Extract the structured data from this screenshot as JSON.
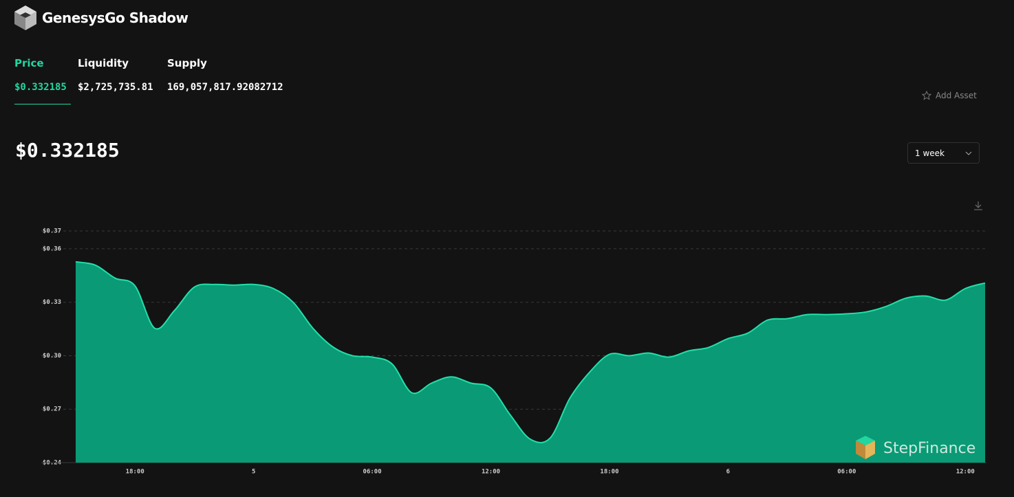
{
  "header": {
    "title": "GenesysGo Shadow"
  },
  "tabs": [
    {
      "label": "Price",
      "value": "$0.332185"
    },
    {
      "label": "Liquidity",
      "value": "$2,725,735.81"
    },
    {
      "label": "Supply",
      "value": "169,057,817.92082712"
    }
  ],
  "add_asset": "Add Asset",
  "current_price": "$0.332185",
  "range_select": "1 week",
  "watermark": "StepFinance",
  "chart_data": {
    "type": "area",
    "categories": [
      null,
      null,
      null,
      "18:00",
      null,
      null,
      null,
      null,
      null,
      "5",
      null,
      null,
      null,
      null,
      null,
      "06:00",
      null,
      null,
      null,
      null,
      null,
      "12:00",
      null,
      null,
      null,
      null,
      null,
      "18:00",
      null,
      null,
      null,
      null,
      null,
      "6",
      null,
      null,
      null,
      null,
      null,
      "06:00",
      null,
      null,
      null,
      null,
      null,
      "12:00",
      null
    ],
    "series": [
      {
        "color": "#0a9a76",
        "values": [
          0.3527,
          0.3508,
          0.3435,
          0.3392,
          0.3154,
          0.3254,
          0.3385,
          0.34,
          0.3396,
          0.34,
          0.3377,
          0.33,
          0.3154,
          0.305,
          0.3,
          0.2992,
          0.2954,
          0.2792,
          0.2846,
          0.2881,
          0.2846,
          0.2819,
          0.2665,
          0.2531,
          0.2538,
          0.2762,
          0.2908,
          0.3008,
          0.3,
          0.3015,
          0.2992,
          0.3027,
          0.3046,
          0.3096,
          0.3127,
          0.32,
          0.3208,
          0.3231,
          0.3231,
          0.3235,
          0.3246,
          0.3277,
          0.3323,
          0.3335,
          0.3312,
          0.3377,
          0.3408
        ]
      }
    ],
    "line_color": "#22e0a8",
    "ylim": [
      0.24,
      0.37
    ],
    "yticks": [
      {
        "value": 0.24,
        "label": "$0.24"
      },
      {
        "value": 0.27,
        "label": "$0.27"
      },
      {
        "value": 0.3,
        "label": "$0.30"
      },
      {
        "value": 0.33,
        "label": "$0.33"
      },
      {
        "value": 0.36,
        "label": "$0.36"
      },
      {
        "value": 0.37,
        "label": "$0.37"
      }
    ],
    "grid": true
  }
}
